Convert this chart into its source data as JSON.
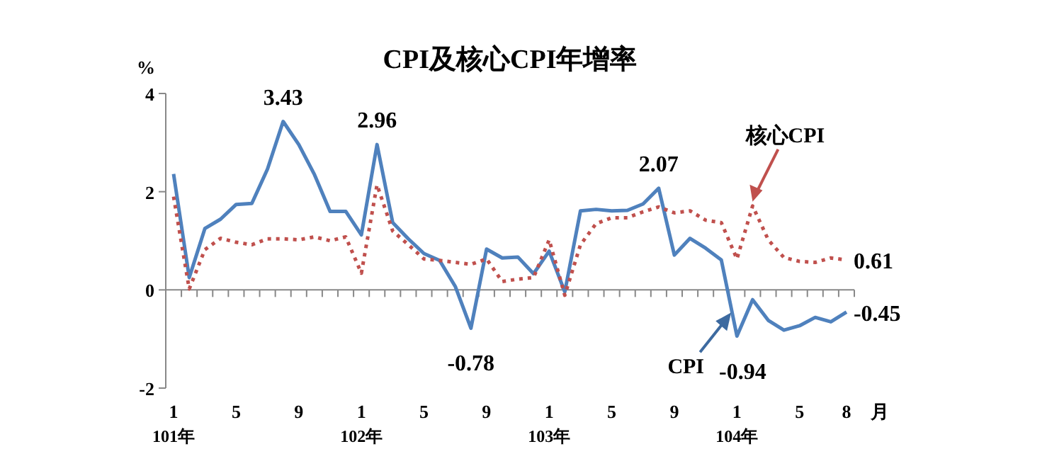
{
  "chart_data": {
    "type": "line",
    "title": "CPI及核心CPI年增率",
    "ylabel": "%",
    "xlabel": "月",
    "categories": [
      "1\n101年",
      null,
      null,
      null,
      "5",
      null,
      null,
      null,
      "9",
      null,
      null,
      null,
      "1\n102年",
      null,
      null,
      null,
      "5",
      null,
      null,
      null,
      "9",
      null,
      null,
      null,
      "1\n103年",
      null,
      null,
      null,
      "5",
      null,
      null,
      null,
      "9",
      null,
      null,
      null,
      "1\n104年",
      null,
      null,
      null,
      "5",
      null,
      null,
      "8"
    ],
    "series": [
      {
        "name": "CPI",
        "color": "#4f81bd",
        "line_style": "solid",
        "values": [
          2.36,
          0.25,
          1.25,
          1.44,
          1.74,
          1.76,
          2.46,
          3.43,
          2.96,
          2.35,
          1.6,
          1.6,
          1.12,
          2.96,
          1.37,
          1.04,
          0.74,
          0.6,
          0.07,
          -0.78,
          0.83,
          0.65,
          0.67,
          0.33,
          0.79,
          -0.04,
          1.61,
          1.64,
          1.61,
          1.62,
          1.75,
          2.07,
          0.71,
          1.05,
          0.85,
          0.61,
          -0.94,
          -0.2,
          -0.62,
          -0.82,
          -0.73,
          -0.56,
          -0.65,
          -0.45
        ],
        "value_labels": [
          null,
          null,
          null,
          null,
          null,
          null,
          null,
          "3.43",
          null,
          null,
          null,
          null,
          null,
          "2.96",
          null,
          null,
          null,
          null,
          null,
          "-0.78",
          null,
          null,
          null,
          null,
          null,
          null,
          null,
          null,
          null,
          null,
          null,
          "2.07",
          null,
          null,
          null,
          null,
          "-0.94",
          null,
          null,
          null,
          null,
          null,
          null,
          "-0.45"
        ]
      },
      {
        "name": "核心CPI",
        "color": "#c0504d",
        "line_style": "dotted",
        "values": [
          1.9,
          0.02,
          0.82,
          1.05,
          0.97,
          0.92,
          1.04,
          1.04,
          1.02,
          1.08,
          1.0,
          1.08,
          0.34,
          2.14,
          1.2,
          0.92,
          0.63,
          0.6,
          0.56,
          0.52,
          0.63,
          0.17,
          0.22,
          0.25,
          1.02,
          -0.11,
          0.92,
          1.35,
          1.47,
          1.47,
          1.59,
          1.69,
          1.57,
          1.61,
          1.42,
          1.37,
          0.63,
          1.71,
          1.02,
          0.66,
          0.58,
          0.56,
          0.65,
          0.61
        ],
        "value_labels": [
          null,
          null,
          null,
          null,
          null,
          null,
          null,
          null,
          null,
          null,
          null,
          null,
          null,
          null,
          null,
          null,
          null,
          null,
          null,
          null,
          null,
          null,
          null,
          null,
          null,
          null,
          null,
          null,
          null,
          null,
          null,
          null,
          null,
          null,
          null,
          null,
          null,
          null,
          null,
          null,
          null,
          null,
          null,
          "0.61"
        ]
      }
    ],
    "ylim": [
      -2,
      4
    ],
    "yticks": [
      -2,
      0,
      2,
      4
    ],
    "marker": "none"
  }
}
